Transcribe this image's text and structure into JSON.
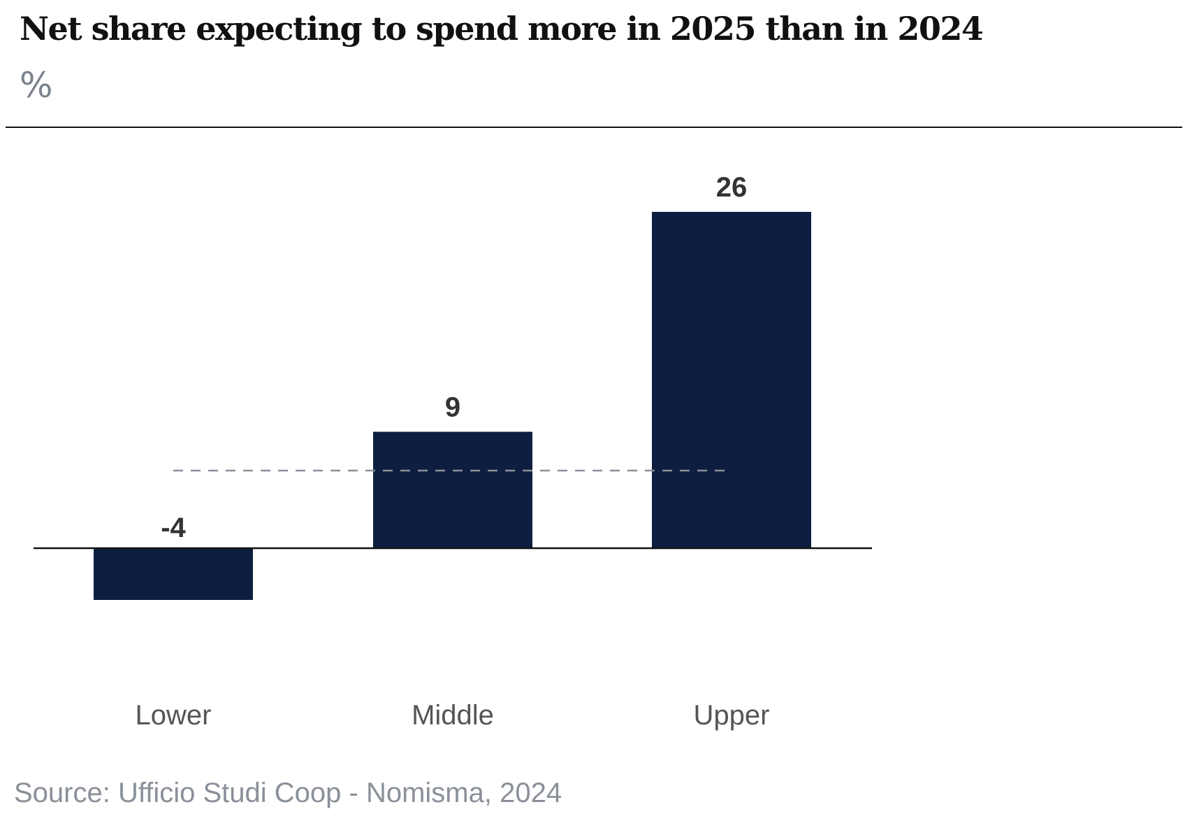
{
  "title": "Net share expecting to spend more in 2025 than in 2024",
  "unit_label": "%",
  "source": "Source: Ufficio Studi Coop - Nomisma, 2024",
  "colors": {
    "bar": "#0e1e40",
    "axis": "#111111",
    "reference_line": "#8a9099",
    "data_label": "#333333",
    "category_label": "#555555"
  },
  "chart_data": {
    "type": "bar",
    "title": "Net share expecting to spend more in 2025 than in 2024",
    "xlabel": "",
    "ylabel": "%",
    "categories": [
      "Lower",
      "Middle",
      "Upper"
    ],
    "values": [
      -4,
      9,
      26
    ],
    "data_labels": [
      "-4",
      "9",
      "26"
    ],
    "reference_line": {
      "value": 6,
      "style": "dashed",
      "from_category": "Lower",
      "to_category": "Upper"
    },
    "ylim": [
      -4,
      26
    ],
    "grid": false,
    "legend": "none"
  }
}
